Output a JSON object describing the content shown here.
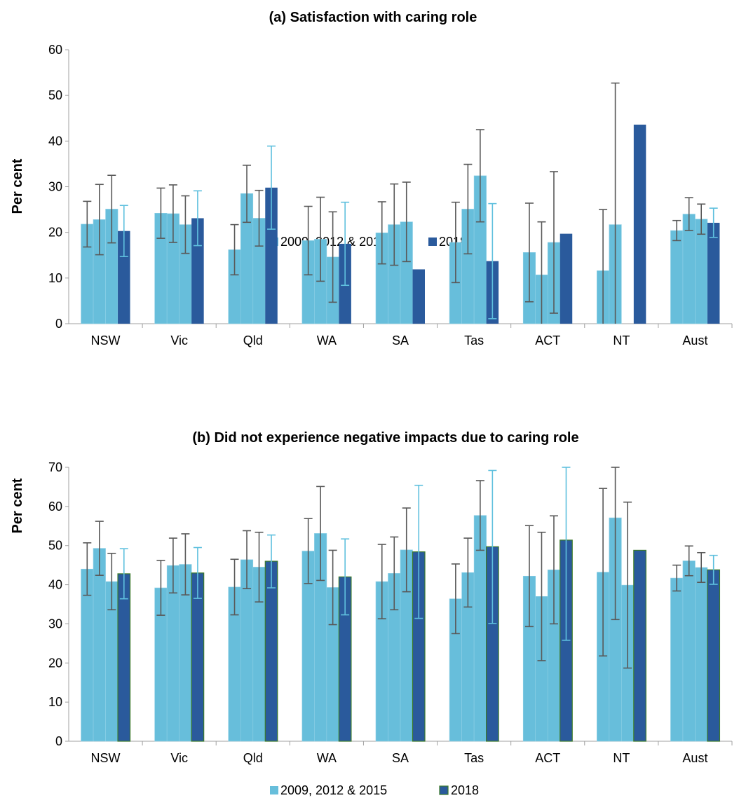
{
  "colors": {
    "hist": "#67bedb",
    "y2018": "#2a5a9c",
    "err_hist": "#595959",
    "err_2018": "#5fc0de",
    "axis": "#a0a0a0",
    "bar_edge_b": "#3c7a2a"
  },
  "chart_data": [
    {
      "type": "bar",
      "title": "(a) Satisfaction with caring role",
      "ylabel": "Per cent",
      "ylim": [
        0,
        60
      ],
      "yticks": [
        "0",
        "10",
        "20",
        "30",
        "40",
        "50",
        "60"
      ],
      "categories": [
        "NSW",
        "Vic",
        "Qld",
        "WA",
        "SA",
        "Tas",
        "ACT",
        "NT",
        "Aust"
      ],
      "legend": [
        "2009, 2012 & 2015",
        "2018"
      ],
      "series": [
        {
          "name": "2009",
          "values": [
            21.8,
            24.2,
            16.2,
            18.2,
            19.9,
            17.8,
            15.6,
            11.6,
            20.4
          ],
          "err_low": [
            16.8,
            18.7,
            10.7,
            10.7,
            13.1,
            9.0,
            4.8,
            0.0,
            18.2
          ],
          "err_high": [
            26.8,
            29.7,
            21.7,
            25.7,
            26.7,
            26.6,
            26.4,
            25.0,
            22.6
          ]
        },
        {
          "name": "2012",
          "values": [
            22.8,
            24.1,
            28.5,
            18.5,
            21.7,
            25.1,
            10.7,
            21.7,
            24.0
          ],
          "err_low": [
            15.1,
            17.8,
            22.2,
            9.3,
            12.8,
            15.3,
            0.0,
            0.0,
            20.4
          ],
          "err_high": [
            30.5,
            30.4,
            34.7,
            27.7,
            30.6,
            34.9,
            22.3,
            52.7,
            27.6
          ]
        },
        {
          "name": "2015",
          "values": [
            25.1,
            21.7,
            23.1,
            14.6,
            22.3,
            32.4,
            17.8,
            null,
            22.9
          ],
          "err_low": [
            17.7,
            15.4,
            17.0,
            4.7,
            13.6,
            22.3,
            2.3,
            null,
            19.6
          ],
          "err_high": [
            32.5,
            28.0,
            29.2,
            24.5,
            31.0,
            42.5,
            33.3,
            null,
            26.2
          ]
        },
        {
          "name": "2018",
          "values": [
            20.3,
            23.1,
            29.8,
            17.5,
            11.9,
            13.7,
            19.7,
            43.6,
            22.1
          ],
          "err_low": [
            14.7,
            17.1,
            20.7,
            8.4,
            null,
            1.1,
            null,
            null,
            18.9
          ],
          "err_high": [
            25.9,
            29.1,
            38.9,
            26.6,
            null,
            26.3,
            null,
            null,
            25.3
          ]
        }
      ]
    },
    {
      "type": "bar",
      "title": "(b) Did not experience negative impacts due to caring role",
      "ylabel": "Per cent",
      "ylim": [
        0,
        70
      ],
      "yticks": [
        "0",
        "10",
        "20",
        "30",
        "40",
        "50",
        "60",
        "70"
      ],
      "categories": [
        "NSW",
        "Vic",
        "Qld",
        "WA",
        "SA",
        "Tas",
        "ACT",
        "NT",
        "Aust"
      ],
      "legend": [
        "2009, 2012 & 2015",
        "2018"
      ],
      "series": [
        {
          "name": "2009",
          "values": [
            44.0,
            39.2,
            39.4,
            48.6,
            40.8,
            36.4,
            42.2,
            43.2,
            41.7
          ],
          "err_low": [
            37.3,
            32.2,
            32.3,
            40.3,
            31.3,
            27.5,
            29.3,
            21.8,
            38.4
          ],
          "err_high": [
            50.7,
            46.2,
            46.5,
            56.9,
            50.3,
            45.3,
            55.1,
            64.6,
            45.0
          ]
        },
        {
          "name": "2012",
          "values": [
            49.3,
            44.9,
            46.4,
            53.1,
            42.9,
            43.1,
            37.0,
            57.1,
            46.1
          ],
          "err_low": [
            42.4,
            37.9,
            39.0,
            41.1,
            33.6,
            34.3,
            20.6,
            31.1,
            42.3
          ],
          "err_high": [
            56.2,
            51.9,
            53.8,
            65.1,
            52.2,
            51.9,
            53.4,
            70.0,
            49.9
          ]
        },
        {
          "name": "2015",
          "values": [
            40.8,
            45.2,
            44.5,
            39.3,
            48.9,
            57.7,
            43.8,
            39.9,
            44.4
          ],
          "err_low": [
            33.6,
            37.4,
            35.6,
            29.8,
            38.2,
            48.8,
            30.0,
            18.7,
            40.6
          ],
          "err_high": [
            48.0,
            53.0,
            53.4,
            48.8,
            59.6,
            66.6,
            57.6,
            61.1,
            48.2
          ]
        },
        {
          "name": "2018",
          "values": [
            42.8,
            43.0,
            46.0,
            42.0,
            48.4,
            49.7,
            51.4,
            48.8,
            43.8
          ],
          "err_low": [
            36.4,
            36.5,
            39.2,
            32.3,
            31.4,
            30.1,
            25.8,
            null,
            40.1
          ],
          "err_high": [
            49.2,
            49.5,
            52.7,
            51.7,
            65.4,
            69.2,
            70.0,
            null,
            47.5
          ]
        }
      ]
    }
  ]
}
